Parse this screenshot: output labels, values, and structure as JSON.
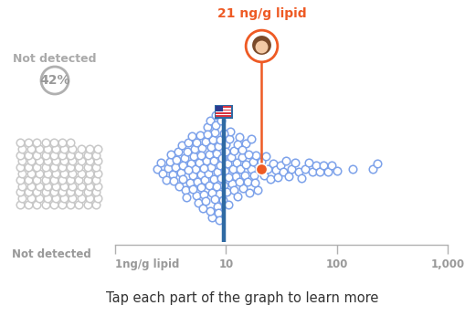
{
  "chart_data": {
    "type": "scatter",
    "log": "x",
    "tick_labels": "x",
    "marker": "o",
    "color": "#7da2ea",
    "xlim": [
      1,
      1000
    ],
    "xticks": [
      {
        "value": 1,
        "label": "1ng/g lipid"
      },
      10,
      100,
      {
        "value": 1000,
        "label": "1,000"
      }
    ],
    "values": [
      2.4,
      2.6,
      2.7,
      2.9,
      3.0,
      3.1,
      3.2,
      3.3,
      3.4,
      3.5,
      3.6,
      3.7,
      3.8,
      3.9,
      4.0,
      4.1,
      4.2,
      4.3,
      4.4,
      4.5,
      4.6,
      4.7,
      4.8,
      4.9,
      5.0,
      5.1,
      5.2,
      5.3,
      5.4,
      5.5,
      5.6,
      5.7,
      5.8,
      5.9,
      6.0,
      6.1,
      6.2,
      6.3,
      6.4,
      6.5,
      6.6,
      6.7,
      6.8,
      6.9,
      7.0,
      7.1,
      7.2,
      7.3,
      7.4,
      7.5,
      7.6,
      7.7,
      7.8,
      7.9,
      8.0,
      8.1,
      8.2,
      8.3,
      8.4,
      8.5,
      8.6,
      8.7,
      8.8,
      8.9,
      9.0,
      9.2,
      9.4,
      9.6,
      9.8,
      10,
      10.2,
      10.4,
      10.6,
      10.8,
      11,
      11.3,
      11.6,
      11.9,
      12.2,
      12.5,
      12.8,
      13.1,
      13.5,
      13.9,
      14.3,
      14.7,
      15.2,
      15.7,
      16.2,
      16.8,
      17.4,
      18,
      18.7,
      19.4,
      20.2,
      21,
      22,
      23,
      24,
      25,
      26.5,
      28,
      29.5,
      31,
      33,
      35,
      37,
      39,
      42,
      45,
      48,
      52,
      56,
      60,
      65,
      70,
      76,
      83,
      90,
      100,
      140,
      210,
      230,
      4.05,
      4.55,
      5.05,
      5.45,
      5.95,
      6.35,
      6.75,
      7.15,
      7.45,
      7.85,
      8.25,
      8.65,
      9.1,
      9.5,
      9.9,
      10.5,
      11.1,
      11.8,
      12.6,
      13.3,
      14.1,
      15,
      16,
      17,
      18.4
    ],
    "us_median": 9.5,
    "highlight": {
      "value": 21,
      "label": "21 ng/g lipid"
    },
    "not_detected": {
      "title": "Not detected",
      "percent": {
        "value": 42,
        "label": "42%"
      },
      "count": 107,
      "axis_label": "Not detected"
    },
    "caption": "Tap each part of the graph to learn more"
  }
}
